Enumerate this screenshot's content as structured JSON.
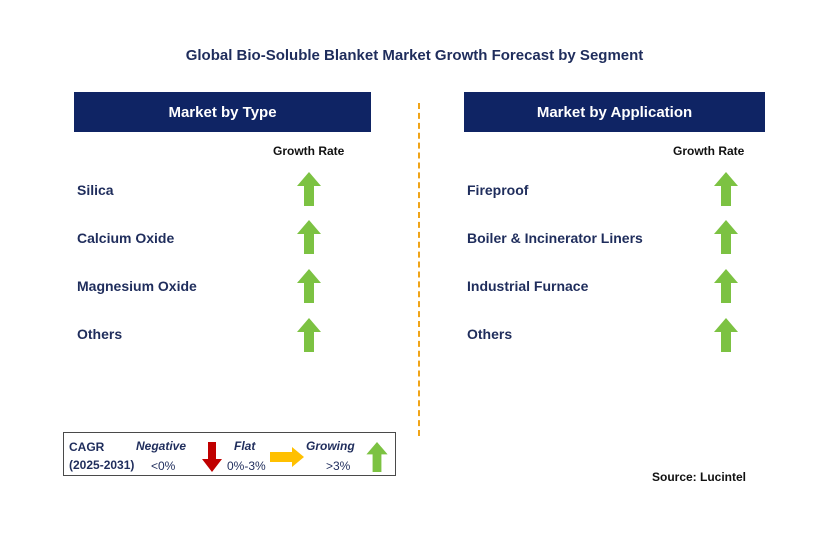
{
  "title": "Global Bio-Soluble Blanket Market Growth Forecast by Segment",
  "left_panel": {
    "header": "Market by Type",
    "growth_label": "Growth Rate",
    "items": [
      {
        "label": "Silica",
        "trend": "growing"
      },
      {
        "label": "Calcium Oxide",
        "trend": "growing"
      },
      {
        "label": "Magnesium Oxide",
        "trend": "growing"
      },
      {
        "label": "Others",
        "trend": "growing"
      }
    ]
  },
  "right_panel": {
    "header": "Market by Application",
    "growth_label": "Growth Rate",
    "items": [
      {
        "label": "Fireproof",
        "trend": "growing"
      },
      {
        "label": "Boiler & Incinerator Liners",
        "trend": "growing"
      },
      {
        "label": "Industrial Furnace",
        "trend": "growing"
      },
      {
        "label": "Others",
        "trend": "growing"
      }
    ]
  },
  "legend": {
    "cagr_label": "CAGR",
    "period": "(2025-2031)",
    "negative": {
      "label": "Negative",
      "range": "<0%",
      "color": "#c00000"
    },
    "flat": {
      "label": "Flat",
      "range": "0%-3%",
      "color": "#ffc000"
    },
    "growing": {
      "label": "Growing",
      "range": ">3%",
      "color": "#7cc242"
    }
  },
  "source": "Source: Lucintel",
  "colors": {
    "header_bg": "#0f2464",
    "title": "#1f2d5c",
    "divider": "#f0a418",
    "up_arrow": "#7cc242"
  }
}
